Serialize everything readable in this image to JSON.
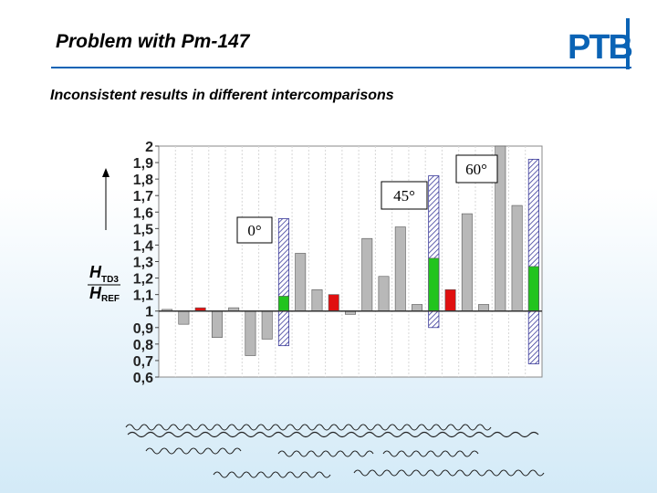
{
  "slide": {
    "title": "Problem with Pm-147",
    "subtitle": "Inconsistent results in different intercomparisons",
    "logo_text": "PTB",
    "accent_color": "#0a63b5"
  },
  "chart_data": {
    "type": "bar",
    "title": "",
    "ylabel_numerator": "H",
    "ylabel_numerator_sub": "TD3",
    "ylabel_denominator": "H",
    "ylabel_denominator_sub": "REF",
    "baseline": 1.0,
    "ylim": [
      0.6,
      2.0
    ],
    "yticks": [
      "0,6",
      "0,7",
      "0,8",
      "0,9",
      "1",
      "1,1",
      "1,2",
      "1,3",
      "1,4",
      "1,5",
      "1,6",
      "1,7",
      "1,8",
      "1,9",
      "2"
    ],
    "angle_labels": [
      "0°",
      "45°",
      "60°"
    ],
    "colors": {
      "gray": "#b8b8b8",
      "green": "#22c41e",
      "red": "#e01010",
      "hatch": "#3a3a9a"
    },
    "bars": [
      {
        "x": 1,
        "value": 1.01,
        "color": "gray"
      },
      {
        "x": 2,
        "value": 0.92,
        "color": "gray"
      },
      {
        "x": 3,
        "value": 1.02,
        "color": "red"
      },
      {
        "x": 4,
        "value": 0.84,
        "color": "gray"
      },
      {
        "x": 5,
        "value": 1.02,
        "color": "gray"
      },
      {
        "x": 6,
        "value": 0.73,
        "color": "gray"
      },
      {
        "x": 7,
        "value": 0.83,
        "color": "gray"
      },
      {
        "x": 8,
        "value": 1.09,
        "color": "green",
        "range": [
          0.79,
          1.56
        ]
      },
      {
        "x": 9,
        "value": 1.35,
        "color": "gray"
      },
      {
        "x": 10,
        "value": 1.13,
        "color": "gray"
      },
      {
        "x": 11,
        "value": 1.1,
        "color": "red"
      },
      {
        "x": 12,
        "value": 0.98,
        "color": "gray"
      },
      {
        "x": 13,
        "value": 1.44,
        "color": "gray"
      },
      {
        "x": 14,
        "value": 1.21,
        "color": "gray"
      },
      {
        "x": 15,
        "value": 1.51,
        "color": "gray"
      },
      {
        "x": 16,
        "value": 1.04,
        "color": "gray"
      },
      {
        "x": 17,
        "value": 1.32,
        "color": "green",
        "range": [
          0.9,
          1.82
        ]
      },
      {
        "x": 18,
        "value": 1.13,
        "color": "red"
      },
      {
        "x": 19,
        "value": 1.59,
        "color": "gray"
      },
      {
        "x": 20,
        "value": 1.04,
        "color": "gray"
      },
      {
        "x": 21,
        "value": 2.0,
        "color": "gray"
      },
      {
        "x": 22,
        "value": 1.64,
        "color": "gray"
      },
      {
        "x": 23,
        "value": 1.27,
        "color": "green",
        "range": [
          0.68,
          1.92
        ]
      }
    ]
  }
}
